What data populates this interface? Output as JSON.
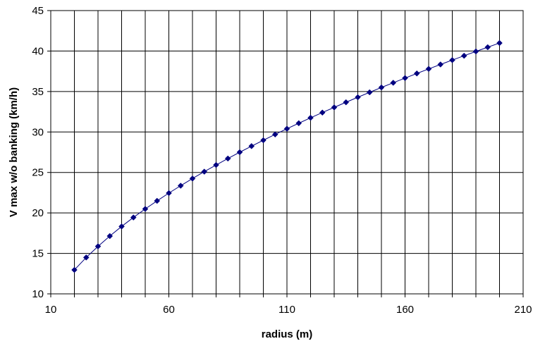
{
  "chart_data": {
    "type": "scatter",
    "title": "",
    "xlabel": "radius (m)",
    "ylabel": "V max w/o banking (km/h)",
    "xlim": [
      10,
      210
    ],
    "ylim": [
      10,
      45
    ],
    "x_ticks": [
      10,
      60,
      110,
      160,
      210
    ],
    "y_ticks": [
      10,
      15,
      20,
      25,
      30,
      35,
      40,
      45
    ],
    "x_gridlines": [
      10,
      20,
      30,
      40,
      50,
      60,
      70,
      80,
      90,
      100,
      110,
      120,
      130,
      140,
      150,
      160,
      170,
      180,
      190,
      200,
      210
    ],
    "y_gridlines": [
      10,
      15,
      20,
      25,
      30,
      35,
      40,
      45
    ],
    "grid": true,
    "connect_points": true,
    "series": [
      {
        "marker": "diamond",
        "color": "#000080",
        "x": [
          20,
          25,
          30,
          35,
          40,
          45,
          50,
          55,
          60,
          65,
          70,
          75,
          80,
          85,
          90,
          95,
          100,
          105,
          110,
          115,
          120,
          125,
          130,
          135,
          140,
          145,
          150,
          155,
          160,
          165,
          170,
          175,
          180,
          185,
          190,
          195,
          200
        ],
        "y": [
          12.96,
          14.49,
          15.87,
          17.14,
          18.33,
          19.44,
          20.49,
          21.49,
          22.45,
          23.36,
          24.25,
          25.1,
          25.92,
          26.72,
          27.5,
          28.25,
          28.98,
          29.7,
          30.4,
          31.08,
          31.75,
          32.4,
          33.04,
          33.67,
          34.29,
          34.9,
          35.5,
          36.08,
          36.66,
          37.23,
          37.79,
          38.34,
          38.88,
          39.42,
          39.95,
          40.47,
          40.99
        ]
      }
    ]
  }
}
